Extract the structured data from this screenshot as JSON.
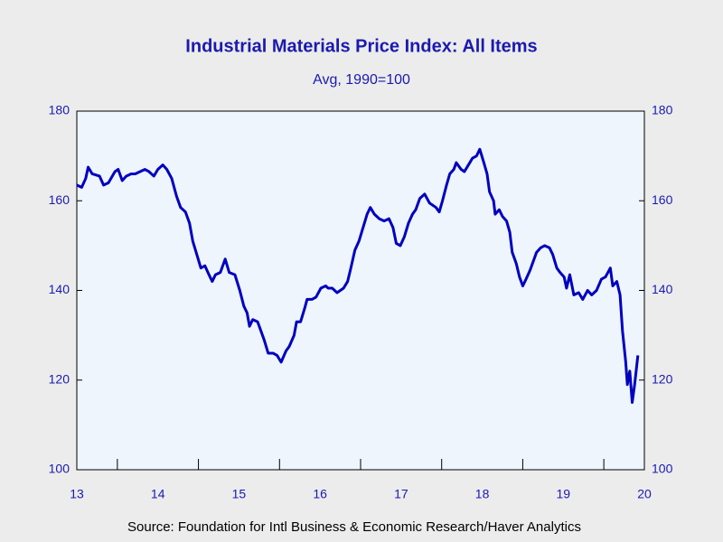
{
  "chart_data": {
    "type": "line",
    "title": "Industrial Materials Price Index: All Items",
    "subtitle": "Avg, 1990=100",
    "source": "Source:  Foundation for Intl Business & Economic Research/Haver Analytics",
    "color": "#0000c0",
    "x": [
      2013.5,
      2013.56,
      2013.61,
      2013.64,
      2013.69,
      2013.78,
      2013.83,
      2013.89,
      2013.97,
      2014.01,
      2014.06,
      2014.11,
      2014.17,
      2014.22,
      2014.28,
      2014.34,
      2014.39,
      2014.45,
      2014.5,
      2014.56,
      2014.61,
      2014.67,
      2014.73,
      2014.78,
      2014.84,
      2014.89,
      2014.93,
      2014.98,
      2015.03,
      2015.08,
      2015.13,
      2015.17,
      2015.21,
      2015.27,
      2015.33,
      2015.38,
      2015.45,
      2015.51,
      2015.56,
      2015.6,
      2015.63,
      2015.67,
      2015.73,
      2015.76,
      2015.81,
      2015.86,
      2015.92,
      2015.97,
      2016.02,
      2016.08,
      2016.12,
      2016.18,
      2016.21,
      2016.26,
      2016.31,
      2016.34,
      2016.4,
      2016.45,
      2016.51,
      2016.57,
      2016.6,
      2016.65,
      2016.71,
      2016.79,
      2016.84,
      2016.88,
      2016.93,
      2016.98,
      2017.03,
      2017.08,
      2017.12,
      2017.17,
      2017.23,
      2017.29,
      2017.35,
      2017.4,
      2017.44,
      2017.49,
      2017.54,
      2017.59,
      2017.64,
      2017.68,
      2017.73,
      2017.79,
      2017.85,
      2017.93,
      2017.97,
      2018.01,
      2018.06,
      2018.1,
      2018.15,
      2018.18,
      2018.24,
      2018.28,
      2018.33,
      2018.38,
      2018.43,
      2018.47,
      2018.52,
      2018.56,
      2018.59,
      2018.64,
      2018.66,
      2018.71,
      2018.75,
      2018.8,
      2018.84,
      2018.87,
      2018.92,
      2018.96,
      2019.0,
      2019.04,
      2019.09,
      2019.13,
      2019.17,
      2019.22,
      2019.27,
      2019.33,
      2019.37,
      2019.42,
      2019.46,
      2019.51,
      2019.54,
      2019.58,
      2019.63,
      2019.69,
      2019.74,
      2019.8,
      2019.85,
      2019.91,
      2019.97,
      2020.02,
      2020.08,
      2020.11,
      2020.16,
      2020.2,
      2020.23,
      2020.27,
      2020.29,
      2020.32,
      2020.35,
      2020.38,
      2020.42
    ],
    "values": [
      163.5,
      163,
      165,
      167.5,
      166,
      165.5,
      163.5,
      164,
      166.5,
      167,
      164.5,
      165.5,
      166,
      166,
      166.5,
      167,
      166.5,
      165.5,
      167,
      168,
      167,
      165,
      161,
      158.5,
      157.5,
      155,
      151,
      148,
      145,
      145.5,
      143.5,
      142,
      143.5,
      144,
      147,
      144,
      143.5,
      140,
      136.5,
      135,
      132,
      133.5,
      133,
      131.5,
      129,
      126,
      126,
      125.5,
      124,
      126.5,
      127.5,
      130,
      133,
      133,
      136,
      138,
      138,
      138.5,
      140.5,
      141,
      140.5,
      140.5,
      139.5,
      140.5,
      142,
      145,
      149,
      151,
      154,
      157,
      158.5,
      157,
      156,
      155.5,
      156,
      154,
      150.5,
      150,
      152,
      155,
      157,
      158,
      160.5,
      161.5,
      159.5,
      158.5,
      157.5,
      160,
      163.5,
      166,
      167,
      168.5,
      167,
      166.5,
      168,
      169.5,
      170,
      171.5,
      168.5,
      166,
      162,
      160,
      157,
      158,
      156.5,
      155.5,
      153,
      148.5,
      146,
      143,
      141,
      142.5,
      144.5,
      146.5,
      148.5,
      149.5,
      150,
      149.5,
      148,
      145,
      144,
      143,
      140.5,
      143.5,
      139,
      139.5,
      138,
      140,
      139,
      140,
      142.5,
      143,
      145,
      141,
      142,
      139,
      131,
      124,
      119,
      122,
      115,
      119,
      125.5
    ],
    "xlim": [
      2013.5,
      2020.5
    ],
    "xticks": [
      {
        "value": 2013.5,
        "label": "13"
      },
      {
        "value": 2014.5,
        "label": "14"
      },
      {
        "value": 2015.5,
        "label": "15"
      },
      {
        "value": 2016.5,
        "label": "16"
      },
      {
        "value": 2017.5,
        "label": "17"
      },
      {
        "value": 2018.5,
        "label": "18"
      },
      {
        "value": 2019.5,
        "label": "19"
      },
      {
        "value": 2020.5,
        "label": "20"
      }
    ],
    "xtick_marks": [
      2014,
      2015,
      2016,
      2017,
      2018,
      2019,
      2020
    ],
    "ylim": [
      100,
      180
    ],
    "yticks": [
      100,
      120,
      140,
      160,
      180
    ]
  }
}
